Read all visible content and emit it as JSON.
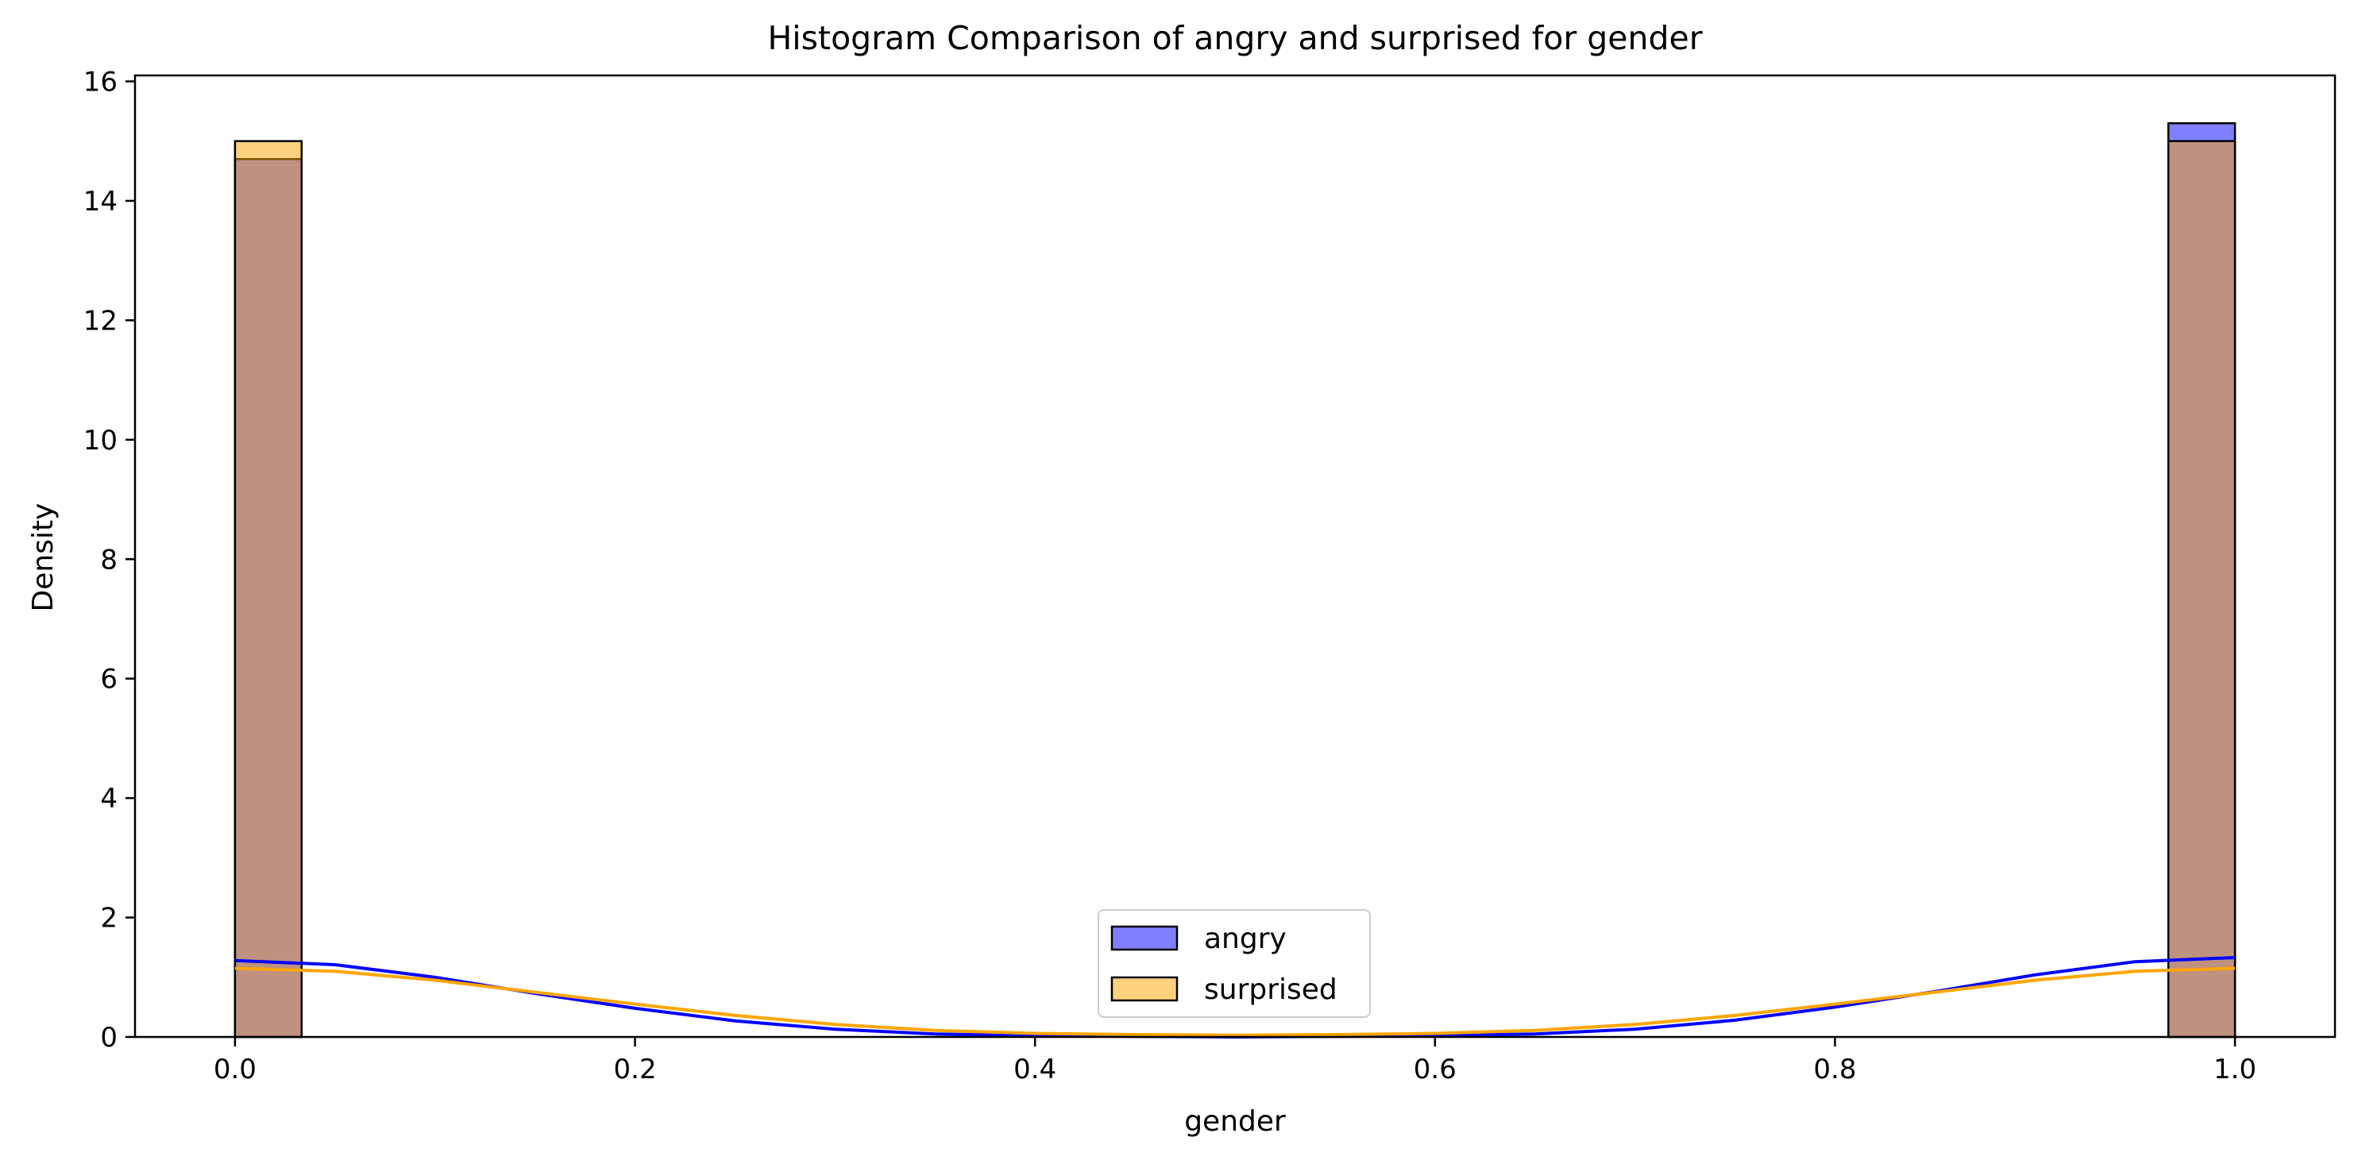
{
  "chart_data": {
    "type": "bar",
    "title": "Histogram Comparison of angry and surprised for gender",
    "xlabel": "gender",
    "ylabel": "Density",
    "xlim": [
      -0.05,
      1.05
    ],
    "ylim": [
      0,
      16.1
    ],
    "xticks": [
      "0.0",
      "0.2",
      "0.4",
      "0.6",
      "0.8",
      "1.0"
    ],
    "yticks": [
      "0",
      "2",
      "4",
      "6",
      "8",
      "10",
      "12",
      "14",
      "16"
    ],
    "grid": false,
    "legend_position": "lower center",
    "bin_width": 0.0333,
    "series": [
      {
        "name": "angry",
        "color": "#0000ff",
        "fill_color": "#8080ff",
        "bins": [
          {
            "x_start": 0.0,
            "x_end": 0.0333,
            "density": 14.7
          },
          {
            "x_start": 0.9667,
            "x_end": 1.0,
            "density": 15.3
          }
        ],
        "kde": {
          "x": [
            0.0,
            0.05,
            0.1,
            0.15,
            0.2,
            0.25,
            0.3,
            0.35,
            0.4,
            0.45,
            0.5,
            0.55,
            0.6,
            0.65,
            0.7,
            0.75,
            0.8,
            0.85,
            0.9,
            0.95,
            1.0
          ],
          "y": [
            1.28,
            1.21,
            1.0,
            0.73,
            0.48,
            0.27,
            0.13,
            0.05,
            0.02,
            0.01,
            0.0,
            0.01,
            0.02,
            0.05,
            0.13,
            0.28,
            0.5,
            0.76,
            1.04,
            1.26,
            1.33
          ]
        }
      },
      {
        "name": "surprised",
        "color": "#ffa500",
        "fill_color": "#ffd280",
        "bins": [
          {
            "x_start": 0.0,
            "x_end": 0.0333,
            "density": 15.0
          },
          {
            "x_start": 0.9667,
            "x_end": 1.0,
            "density": 15.0
          }
        ],
        "kde": {
          "x": [
            0.0,
            0.05,
            0.1,
            0.15,
            0.2,
            0.25,
            0.3,
            0.35,
            0.4,
            0.45,
            0.5,
            0.55,
            0.6,
            0.65,
            0.7,
            0.75,
            0.8,
            0.85,
            0.9,
            0.95,
            1.0
          ],
          "y": [
            1.15,
            1.1,
            0.95,
            0.75,
            0.55,
            0.36,
            0.21,
            0.11,
            0.06,
            0.04,
            0.03,
            0.04,
            0.06,
            0.11,
            0.21,
            0.36,
            0.55,
            0.75,
            0.95,
            1.1,
            1.15
          ]
        }
      }
    ]
  }
}
